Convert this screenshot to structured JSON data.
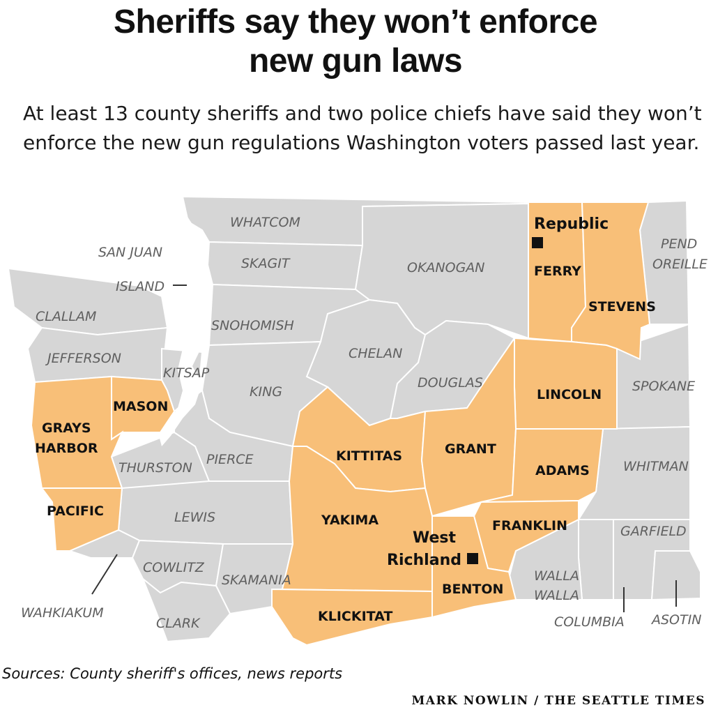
{
  "header": {
    "title_line1": "Sheriffs say they won’t enforce",
    "title_line2": "new gun laws",
    "subtitle": "At least 13 county sheriffs and two police chiefs have said they won’t enforce the new gun regulations Washington voters passed last year."
  },
  "map": {
    "state": "Washington",
    "colors": {
      "highlight": "#f8bf78",
      "default": "#d6d6d6",
      "border": "#ffffff"
    },
    "counties_gray": {
      "whatcom": "WHATCOM",
      "san_juan": "SAN JUAN",
      "island": "ISLAND",
      "skagit": "SKAGIT",
      "okanogan": "OKANOGAN",
      "pend_oreille_1": "PEND",
      "pend_oreille_2": "OREILLE",
      "clallam": "CLALLAM",
      "snohomish": "SNOHOMISH",
      "jefferson": "JEFFERSON",
      "chelan": "CHELAN",
      "kitsap": "KITSAP",
      "douglas": "DOUGLAS",
      "spokane": "SPOKANE",
      "king": "KING",
      "thurston": "THURSTON",
      "pierce": "PIERCE",
      "whitman": "WHITMAN",
      "lewis": "LEWIS",
      "garfield": "GARFIELD",
      "cowlitz": "COWLITZ",
      "skamania": "SKAMANIA",
      "walla_walla_1": "WALLA",
      "walla_walla_2": "WALLA",
      "wahkiakum": "WAHKIAKUM",
      "clark": "CLARK",
      "columbia": "COLUMBIA",
      "asotin": "ASOTIN"
    },
    "counties_highlighted": {
      "ferry": "FERRY",
      "stevens": "STEVENS",
      "lincoln": "LINCOLN",
      "mason": "MASON",
      "grays_harbor_1": "GRAYS",
      "grays_harbor_2": "HARBOR",
      "kittitas": "KITTITAS",
      "grant": "GRANT",
      "adams": "ADAMS",
      "pacific": "PACIFIC",
      "yakima": "YAKIMA",
      "franklin": "FRANKLIN",
      "benton": "BENTON",
      "klickitat": "KLICKITAT"
    },
    "cities": {
      "republic": "Republic",
      "west_richland_1": "West",
      "west_richland_2": "Richland"
    }
  },
  "footer": {
    "sources": "Sources: County sheriff's offices, news reports",
    "credit": "MARK NOWLIN / THE SEATTLE TIMES"
  }
}
